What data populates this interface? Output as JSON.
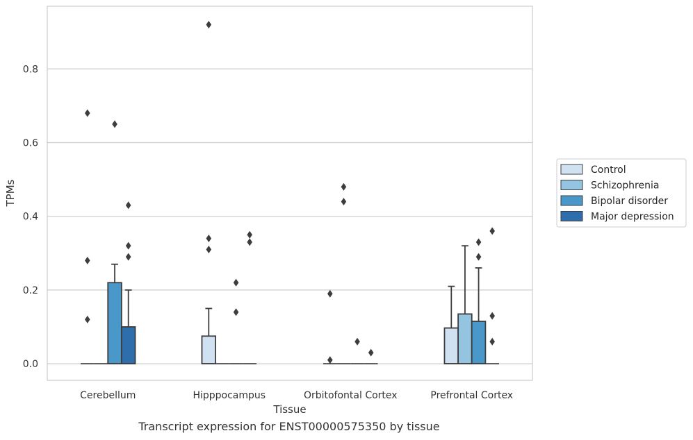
{
  "caption": "Transcript expression for ENST00000575350 by tissue",
  "chart_data": {
    "type": "box",
    "title": "",
    "xlabel": "Tissue",
    "ylabel": "TPMs",
    "ylim": [
      -0.045,
      0.97
    ],
    "yticks": [
      0.0,
      0.2,
      0.4,
      0.6,
      0.8
    ],
    "ytick_labels": [
      "0.0",
      "0.2",
      "0.4",
      "0.6",
      "0.8"
    ],
    "categories": [
      "Cerebellum",
      "Hipppocampus",
      "Orbitofontal Cortex",
      "Prefrontal Cortex"
    ],
    "grid": "horizontal",
    "legend_position": "right",
    "series": [
      {
        "name": "Control",
        "color": "#d0e1f2",
        "boxes": [
          {
            "q1": 0,
            "median": 0,
            "q3": 0,
            "whislo": 0,
            "whishi": 0,
            "fliers": [
              0.12,
              0.28,
              0.68
            ]
          },
          {
            "q1": 0,
            "median": 0,
            "q3": 0.075,
            "whislo": 0,
            "whishi": 0.15,
            "fliers": [
              0.31,
              0.34,
              0.92
            ]
          },
          {
            "q1": 0,
            "median": 0,
            "q3": 0,
            "whislo": 0,
            "whishi": 0,
            "fliers": [
              0.01,
              0.19
            ]
          },
          {
            "q1": 0,
            "median": 0,
            "q3": 0.097,
            "whislo": 0,
            "whishi": 0.21,
            "fliers": []
          }
        ]
      },
      {
        "name": "Schizophrenia",
        "color": "#94c4df",
        "boxes": [
          {
            "q1": 0,
            "median": 0,
            "q3": 0,
            "whislo": 0,
            "whishi": 0,
            "fliers": []
          },
          {
            "q1": 0,
            "median": 0,
            "q3": 0,
            "whislo": 0,
            "whishi": 0,
            "fliers": []
          },
          {
            "q1": 0,
            "median": 0,
            "q3": 0,
            "whislo": 0,
            "whishi": 0,
            "fliers": [
              0.44,
              0.48
            ]
          },
          {
            "q1": 0,
            "median": 0,
            "q3": 0.135,
            "whislo": 0,
            "whishi": 0.32,
            "fliers": []
          }
        ]
      },
      {
        "name": "Bipolar disorder",
        "color": "#4a98c9",
        "boxes": [
          {
            "q1": 0,
            "median": 0,
            "q3": 0.22,
            "whislo": 0,
            "whishi": 0.27,
            "fliers": [
              0.65
            ]
          },
          {
            "q1": 0,
            "median": 0,
            "q3": 0,
            "whislo": 0,
            "whishi": 0,
            "fliers": [
              0.14,
              0.22
            ]
          },
          {
            "q1": 0,
            "median": 0,
            "q3": 0,
            "whislo": 0,
            "whishi": 0,
            "fliers": [
              0.06
            ]
          },
          {
            "q1": 0,
            "median": 0,
            "q3": 0.115,
            "whislo": 0,
            "whishi": 0.26,
            "fliers": [
              0.29,
              0.33
            ]
          }
        ]
      },
      {
        "name": "Major depression",
        "color": "#2e6ead",
        "boxes": [
          {
            "q1": 0,
            "median": 0,
            "q3": 0.1,
            "whislo": 0,
            "whishi": 0.2,
            "fliers": [
              0.29,
              0.32,
              0.43
            ]
          },
          {
            "q1": 0,
            "median": 0,
            "q3": 0,
            "whislo": 0,
            "whishi": 0,
            "fliers": [
              0.33,
              0.35
            ]
          },
          {
            "q1": 0,
            "median": 0,
            "q3": 0,
            "whislo": 0,
            "whishi": 0,
            "fliers": [
              0.03
            ]
          },
          {
            "q1": 0,
            "median": 0,
            "q3": 0,
            "whislo": 0,
            "whishi": 0,
            "fliers": [
              0.06,
              0.13,
              0.36
            ]
          }
        ]
      }
    ]
  }
}
